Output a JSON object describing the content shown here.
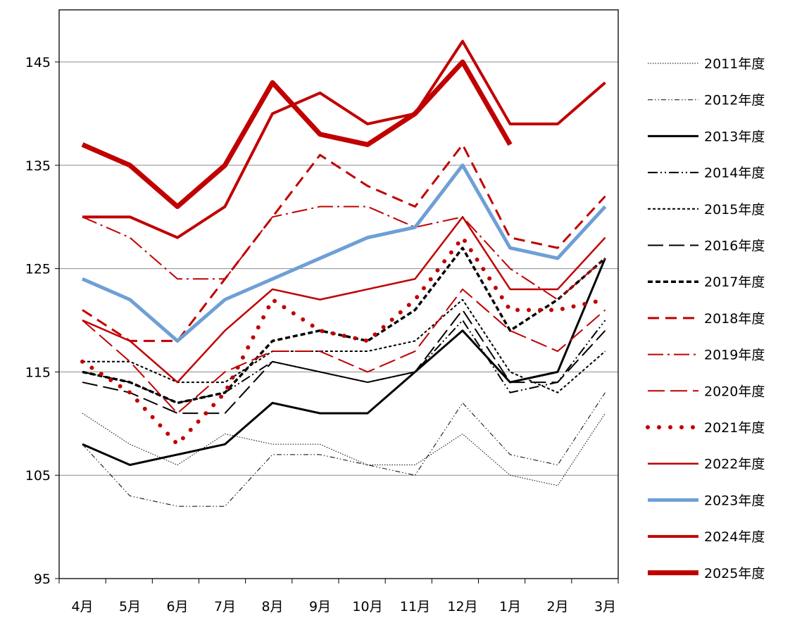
{
  "chart_data": {
    "type": "line",
    "categories": [
      "4月",
      "5月",
      "6月",
      "7月",
      "8月",
      "9月",
      "10月",
      "11月",
      "12月",
      "1月",
      "2月",
      "3月"
    ],
    "ylim": [
      95,
      150
    ],
    "yticks": [
      95,
      105,
      115,
      125,
      135,
      145
    ],
    "grid": "horizontal",
    "legend_position": "right",
    "series": [
      {
        "name": "2011年度",
        "color": "#000000",
        "width": 1,
        "dash": "1.5 2",
        "values": [
          111,
          108,
          106,
          109,
          108,
          108,
          106,
          106,
          109,
          105,
          104,
          111
        ]
      },
      {
        "name": "2012年度",
        "color": "#000000",
        "width": 1,
        "dash": "7 3 1.5 3 1.5 3",
        "values": [
          108,
          103,
          102,
          102,
          107,
          107,
          106,
          105,
          112,
          107,
          106,
          113
        ]
      },
      {
        "name": "2013年度",
        "color": "#000000",
        "width": 3,
        "dash": "",
        "values": [
          108,
          106,
          107,
          108,
          112,
          111,
          111,
          115,
          119,
          114,
          115,
          126
        ]
      },
      {
        "name": "2014年度",
        "color": "#000000",
        "width": 2,
        "dash": "14 4 2 4 2 4",
        "values": [
          115,
          114,
          112,
          113,
          116,
          115,
          114,
          115,
          120,
          113,
          114,
          120
        ]
      },
      {
        "name": "2015年度",
        "color": "#000000",
        "width": 2,
        "dash": "4 3",
        "values": [
          116,
          116,
          114,
          114,
          117,
          117,
          117,
          118,
          122,
          115,
          113,
          117
        ]
      },
      {
        "name": "2016年度",
        "color": "#000000",
        "width": 2,
        "dash": "22 8",
        "values": [
          114,
          113,
          111,
          111,
          116,
          115,
          114,
          115,
          121,
          114,
          114,
          119
        ]
      },
      {
        "name": "2017年度",
        "color": "#000000",
        "width": 3.5,
        "dash": "7 4",
        "values": [
          115,
          114,
          112,
          113,
          118,
          119,
          118,
          121,
          127,
          119,
          122,
          126
        ]
      },
      {
        "name": "2018年度",
        "color": "#c00000",
        "width": 3,
        "dash": "16 9",
        "values": [
          121,
          118,
          118,
          124,
          130,
          136,
          133,
          131,
          137,
          128,
          127,
          132
        ]
      },
      {
        "name": "2019年度",
        "color": "#c00000",
        "width": 2,
        "dash": "22 6 3 6",
        "values": [
          130,
          128,
          124,
          124,
          130,
          131,
          131,
          129,
          130,
          125,
          122,
          126
        ]
      },
      {
        "name": "2020年度",
        "color": "#c00000",
        "width": 2,
        "dash": "24 8",
        "values": [
          120,
          116,
          111,
          115,
          117,
          117,
          115,
          117,
          123,
          119,
          117,
          121
        ]
      },
      {
        "name": "2021年度",
        "color": "#c00000",
        "width": 6,
        "dash": "0 16",
        "values": [
          116,
          113,
          108,
          113,
          122,
          119,
          118,
          122,
          128,
          121,
          121,
          122
        ]
      },
      {
        "name": "2022年度",
        "color": "#c00000",
        "width": 2.5,
        "dash": "",
        "values": [
          120,
          118,
          114,
          119,
          123,
          122,
          123,
          124,
          130,
          123,
          123,
          128
        ]
      },
      {
        "name": "2023年度",
        "color": "#6e9fd6",
        "width": 5,
        "dash": "",
        "values": [
          124,
          122,
          118,
          122,
          124,
          126,
          128,
          129,
          135,
          127,
          126,
          131
        ]
      },
      {
        "name": "2024年度",
        "color": "#c00000",
        "width": 4,
        "dash": "",
        "values": [
          130,
          130,
          128,
          131,
          140,
          142,
          139,
          140,
          147,
          139,
          139,
          143
        ]
      },
      {
        "name": "2025年度",
        "color": "#c00000",
        "width": 7,
        "dash": "",
        "values": [
          137,
          135,
          131,
          135,
          143,
          138,
          137,
          140,
          145,
          137,
          null,
          null
        ]
      }
    ]
  }
}
